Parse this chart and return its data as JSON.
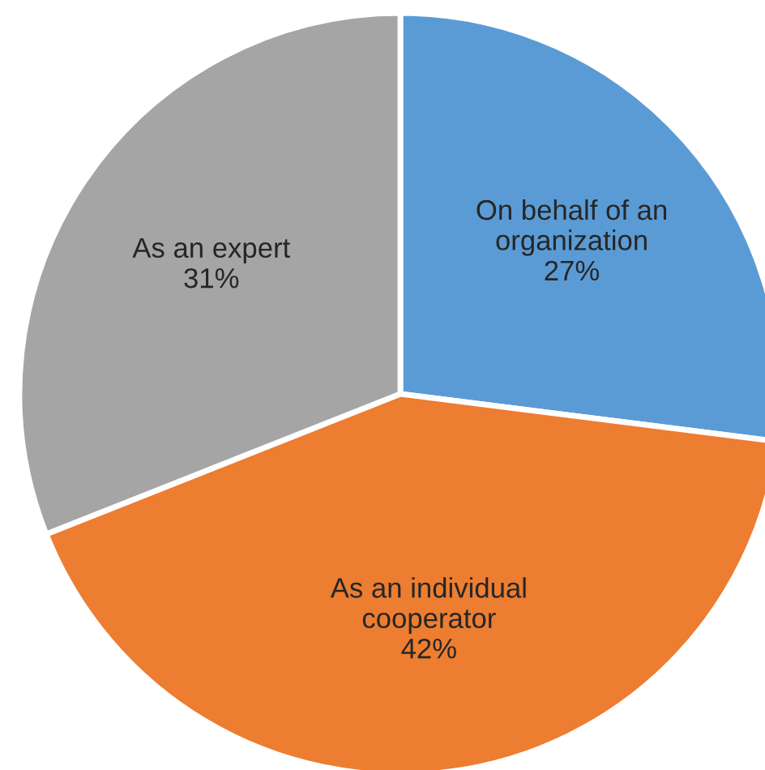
{
  "chart_data": {
    "type": "pie",
    "categories": [
      "On behalf of an\norganization",
      "As an individual\ncooperator",
      "As an expert"
    ],
    "values": [
      27,
      42,
      31
    ],
    "value_labels": [
      "27%",
      "42%",
      "31%"
    ],
    "colors": [
      "#5b9bd5",
      "#ed7d31",
      "#a5a5a5"
    ],
    "legend": false
  }
}
